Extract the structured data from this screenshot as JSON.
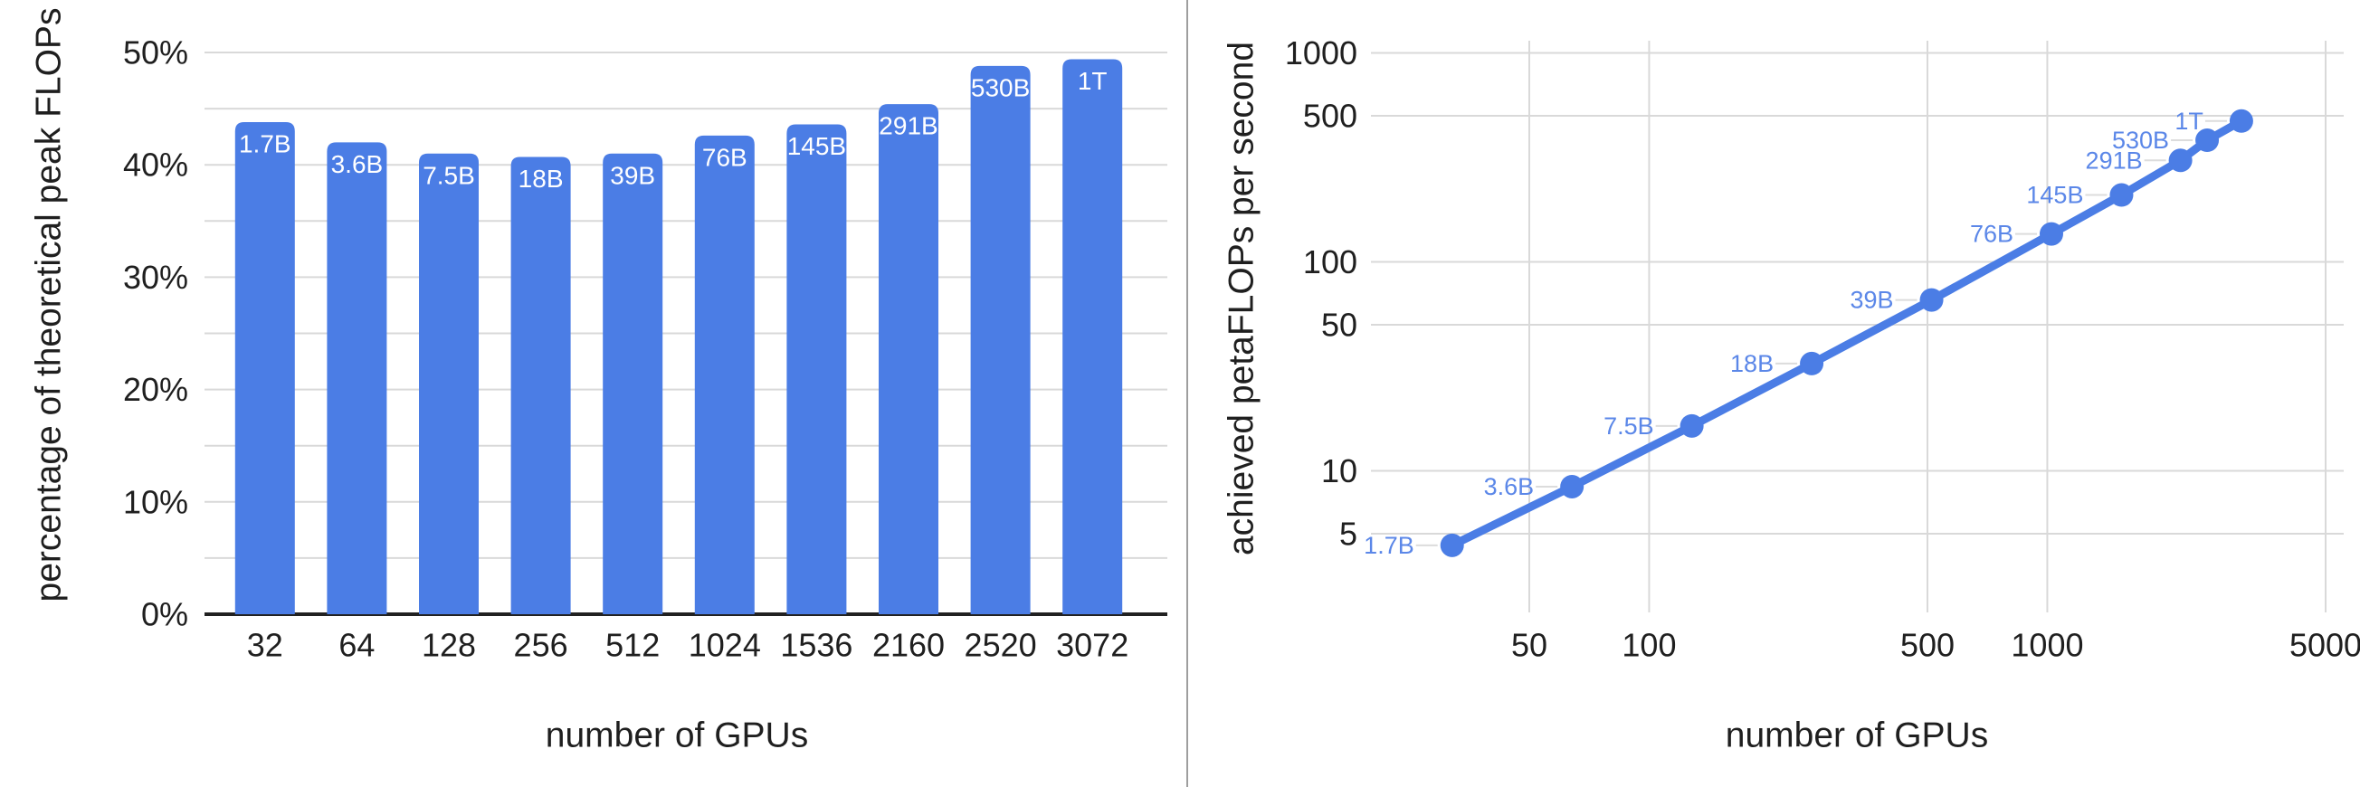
{
  "page": {
    "background": "#ffffff",
    "divider_color": "#9e9e9e",
    "gridline_color": "#d9d9d9",
    "axis_line_color": "#212121",
    "tick_label_color": "#1f1f1f"
  },
  "chart_data": [
    {
      "id": "peak-flops-utilization",
      "type": "bar",
      "title": "",
      "xlabel": "number of GPUs",
      "ylabel": "percentage of theoretical peak FLOPs",
      "categories": [
        "32",
        "64",
        "128",
        "256",
        "512",
        "1024",
        "1536",
        "2160",
        "2520",
        "3072"
      ],
      "values": [
        43.8,
        42.0,
        41.0,
        40.7,
        41.0,
        42.6,
        43.6,
        45.4,
        48.8,
        49.4
      ],
      "bar_labels": [
        "1.7B",
        "3.6B",
        "7.5B",
        "18B",
        "39B",
        "76B",
        "145B",
        "291B",
        "530B",
        "1T"
      ],
      "y_tick_labels": [
        "0%",
        "10%",
        "20%",
        "30%",
        "40%",
        "50%"
      ],
      "y_tick_values": [
        0,
        10,
        20,
        30,
        40,
        50
      ],
      "ylim": [
        0,
        50
      ],
      "grid_step": 5,
      "grid": true,
      "bar_color": "#4b7de5",
      "bar_label_color": "#ffffff"
    },
    {
      "id": "achieved-petaflops",
      "type": "line",
      "title": "",
      "xlabel": "number of GPUs",
      "ylabel": "achieved petaFLOPs per second",
      "xscale": "log",
      "yscale": "log",
      "x": [
        32,
        64,
        128,
        256,
        512,
        1024,
        1536,
        2160,
        2520,
        3072
      ],
      "y": [
        4.4,
        8.4,
        16.4,
        32.6,
        65.7,
        136,
        209,
        306,
        382,
        472
      ],
      "point_labels": [
        "1.7B",
        "3.6B",
        "7.5B",
        "18B",
        "39B",
        "76B",
        "145B",
        "291B",
        "530B",
        "1T"
      ],
      "x_tick_values": [
        50,
        100,
        500,
        1000,
        5000
      ],
      "x_tick_labels": [
        "50",
        "100",
        "500",
        "1000",
        "5000"
      ],
      "y_tick_values": [
        5,
        10,
        50,
        100,
        500,
        1000
      ],
      "y_tick_labels": [
        "5",
        "10",
        "50",
        "100",
        "500",
        "1000"
      ],
      "xlim": [
        20,
        5600
      ],
      "ylim": [
        2,
        1120
      ],
      "grid": true,
      "line_color": "#4b7de5",
      "marker_color": "#4b7de5",
      "point_label_color": "#5b87e8",
      "leader_line_color": "#dcdcdc"
    }
  ]
}
